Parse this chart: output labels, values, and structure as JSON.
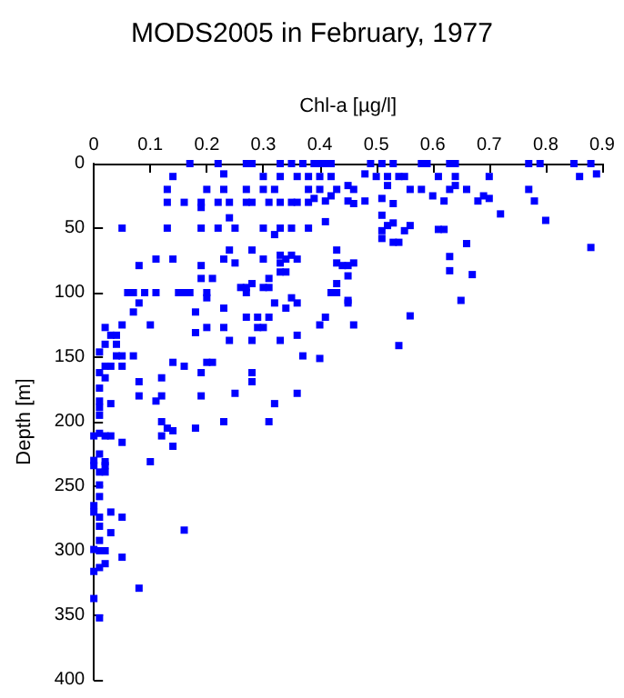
{
  "chart_data": {
    "type": "scatter",
    "title": "MODS2005 in February, 1977",
    "xlabel": "Chl-a [µg/l]",
    "ylabel": "Depth [m]",
    "xlim": [
      0,
      0.9
    ],
    "xticks": [
      0,
      0.1,
      0.2,
      0.3,
      0.4,
      0.5,
      0.6,
      0.7,
      0.8,
      0.9
    ],
    "ylim": [
      400,
      0
    ],
    "yticks": [
      0,
      50,
      100,
      150,
      200,
      250,
      300,
      350,
      400
    ],
    "marker": "square",
    "series": [
      {
        "color": "#0000ff",
        "x": [
          0.17,
          0.22,
          0.27,
          0.28,
          0.33,
          0.35,
          0.37,
          0.39,
          0.4,
          0.41,
          0.42,
          0.49,
          0.51,
          0.53,
          0.58,
          0.59,
          0.63,
          0.64,
          0.77,
          0.79,
          0.85,
          0.88,
          0.23,
          0.48,
          0.89,
          0.14,
          0.3,
          0.33,
          0.36,
          0.38,
          0.4,
          0.42,
          0.5,
          0.52,
          0.54,
          0.55,
          0.61,
          0.64,
          0.7,
          0.86,
          0.45,
          0.52,
          0.64,
          0.13,
          0.2,
          0.23,
          0.27,
          0.3,
          0.32,
          0.38,
          0.4,
          0.43,
          0.46,
          0.56,
          0.58,
          0.63,
          0.66,
          0.77,
          0.42,
          0.6,
          0.69,
          0.39,
          0.51,
          0.7,
          0.41,
          0.45,
          0.48,
          0.62,
          0.68,
          0.78,
          0.13,
          0.16,
          0.19,
          0.22,
          0.24,
          0.27,
          0.28,
          0.31,
          0.33,
          0.35,
          0.36,
          0.38,
          0.46,
          0.53,
          0.19,
          0.72,
          0.51,
          0.24,
          0.8,
          0.41,
          0.53,
          0.52,
          0.56,
          0.05,
          0.13,
          0.19,
          0.22,
          0.25,
          0.3,
          0.33,
          0.35,
          0.38,
          0.61,
          0.62,
          0.51,
          0.55,
          0.32,
          0.51,
          0.53,
          0.54,
          0.66,
          0.88,
          0.24,
          0.28,
          0.43,
          0.33,
          0.35,
          0.63,
          0.11,
          0.14,
          0.23,
          0.3,
          0.34,
          0.36,
          0.25,
          0.33,
          0.43,
          0.46,
          0.08,
          0.19,
          0.44,
          0.45,
          0.63,
          0.33,
          0.34,
          0.67,
          0.45,
          0.19,
          0.21,
          0.31,
          0.28,
          0.43,
          0.26,
          0.27,
          0.3,
          0.31,
          0.06,
          0.07,
          0.09,
          0.11,
          0.15,
          0.16,
          0.17,
          0.2,
          0.27,
          0.42,
          0.43,
          0.2,
          0.35,
          0.45,
          0.65,
          0.08,
          0.32,
          0.36,
          0.45,
          0.23,
          0.34,
          0.07,
          0.18,
          0.56,
          0.27,
          0.29,
          0.31,
          0.41,
          0.05,
          0.1,
          0.4,
          0.46,
          0.02,
          0.2,
          0.23,
          0.29,
          0.3,
          0.18,
          0.03,
          0.04,
          0.36,
          0.24,
          0.28,
          0.33,
          0.02,
          0.04,
          0.54,
          0.01,
          0.04,
          0.05,
          0.07,
          0.37,
          0.4,
          0.14,
          0.2,
          0.21,
          0.02,
          0.03,
          0.05,
          0.16,
          0.01,
          0.19,
          0.28,
          0.02,
          0.12,
          0.08,
          0.28,
          0.01,
          0.25,
          0.36,
          0.08,
          0.12,
          0.19,
          0.01,
          0.11,
          0.03,
          0.32,
          0.01,
          0.01,
          0.12,
          0.23,
          0.31,
          0.13,
          0.18,
          0.14,
          0.01,
          0.0,
          0.02,
          0.03,
          0.12,
          0.05,
          0.14,
          0.01,
          0.0,
          0.02,
          0.1,
          0.0,
          0.02,
          0.01,
          0.02,
          0.01,
          0.01,
          0.0,
          0.0,
          0.03,
          0.01,
          0.05,
          0.01,
          0.16,
          0.03,
          0.01,
          0.0,
          0.01,
          0.02,
          0.05,
          0.02,
          0.01,
          0.0,
          0.08,
          0.0,
          0.01
        ],
        "values": [
          0,
          0,
          0,
          0,
          0,
          0,
          0,
          0,
          0,
          0,
          0,
          0,
          0,
          0,
          0,
          0,
          0,
          0,
          0,
          0,
          0,
          0,
          8,
          8,
          8,
          10,
          10,
          10,
          10,
          10,
          10,
          10,
          10,
          10,
          10,
          10,
          10,
          10,
          10,
          10,
          17,
          17,
          17,
          20,
          20,
          20,
          20,
          20,
          20,
          20,
          20,
          20,
          20,
          20,
          20,
          20,
          20,
          20,
          25,
          25,
          25,
          27,
          27,
          27,
          29,
          29,
          29,
          29,
          29,
          29,
          30,
          30,
          30,
          30,
          30,
          30,
          30,
          30,
          30,
          30,
          30,
          30,
          31,
          31,
          34,
          39,
          40,
          42,
          44,
          45,
          46,
          48,
          48,
          50,
          50,
          50,
          50,
          50,
          50,
          50,
          50,
          50,
          51,
          51,
          52,
          52,
          55,
          58,
          61,
          61,
          62,
          65,
          67,
          67,
          67,
          71,
          71,
          72,
          74,
          74,
          74,
          74,
          74,
          74,
          77,
          77,
          77,
          77,
          79,
          79,
          79,
          79,
          83,
          84,
          84,
          86,
          87,
          89,
          89,
          89,
          93,
          93,
          96,
          96,
          96,
          96,
          100,
          100,
          100,
          100,
          100,
          100,
          100,
          100,
          100,
          100,
          100,
          104,
          104,
          106,
          106,
          108,
          108,
          108,
          108,
          112,
          112,
          115,
          115,
          118,
          119,
          119,
          119,
          119,
          125,
          125,
          125,
          125,
          127,
          127,
          127,
          127,
          127,
          131,
          133,
          133,
          133,
          137,
          137,
          137,
          140,
          140,
          141,
          146,
          149,
          149,
          149,
          149,
          151,
          154,
          154,
          154,
          157,
          157,
          157,
          157,
          162,
          162,
          162,
          166,
          166,
          169,
          169,
          174,
          178,
          178,
          180,
          180,
          180,
          184,
          184,
          186,
          186,
          189,
          195,
          200,
          200,
          200,
          205,
          205,
          207,
          209,
          211,
          211,
          211,
          211,
          216,
          219,
          225,
          230,
          231,
          231,
          234,
          234,
          239,
          239,
          249,
          258,
          265,
          270,
          270,
          274,
          274,
          281,
          284,
          286,
          292,
          299,
          300,
          300,
          305,
          310,
          313,
          316,
          329,
          337,
          352
        ]
      }
    ]
  }
}
